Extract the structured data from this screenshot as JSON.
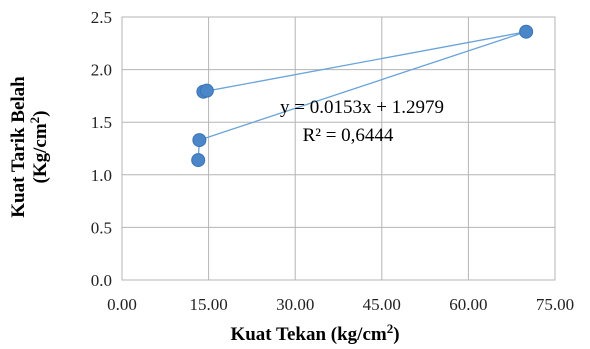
{
  "chart_data": {
    "type": "scatter",
    "title": "",
    "xlabel": {
      "prefix": "Kuat Tekan (kg/cm",
      "sup": "2",
      "suffix": ")"
    },
    "ylabel": {
      "line1": "Kuat  Tarik Belah",
      "line2_prefix": "(Kg/cm",
      "line2_sup": "2",
      "line2_suffix": ")"
    },
    "xlim": [
      0,
      75
    ],
    "ylim": [
      0,
      2.5
    ],
    "x_ticks": [
      0,
      15,
      30,
      45,
      60,
      75
    ],
    "x_tick_labels": [
      "0.00",
      "15.00",
      "30.00",
      "45.00",
      "60.00",
      "75.00"
    ],
    "y_ticks": [
      0,
      0.5,
      1.0,
      1.5,
      2.0,
      2.5
    ],
    "y_tick_labels": [
      "0.0",
      "0.5",
      "1.0",
      "1.5",
      "2.0",
      "2.5"
    ],
    "grid": true,
    "series": [
      {
        "points": [
          {
            "x": 13.2,
            "y": 1.14
          },
          {
            "x": 13.4,
            "y": 1.33
          },
          {
            "x": 14.1,
            "y": 1.79
          },
          {
            "x": 14.7,
            "y": 1.8
          },
          {
            "x": 70.0,
            "y": 2.36
          }
        ]
      }
    ],
    "connecting_path_order": [
      3,
      2,
      4,
      1,
      0
    ],
    "annotations": {
      "equation": "y = 0.0153x + 1.2979",
      "r_squared": "R² = 0,6444"
    },
    "colors": {
      "marker": "#4a86c8",
      "line": "#6aa3da",
      "grid": "#b5b5b5"
    }
  }
}
